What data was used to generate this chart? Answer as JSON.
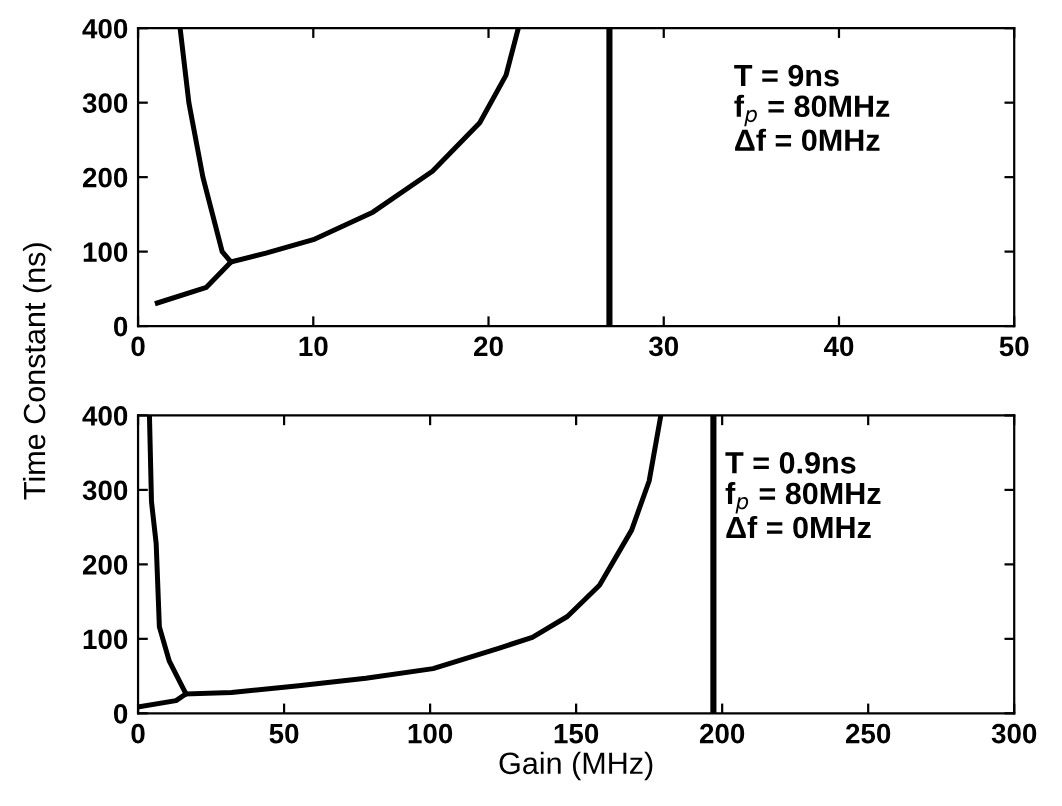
{
  "chart_data": [
    {
      "type": "line",
      "ylabel": "Time Constant (ns)",
      "xlim": [
        0,
        50
      ],
      "ylim": [
        0,
        400
      ],
      "xticks": [
        0,
        10,
        20,
        30,
        40,
        50
      ],
      "yticks": [
        0,
        100,
        200,
        300,
        400
      ],
      "grid": false,
      "series": [
        {
          "color": "#000000",
          "x": [
            2.4,
            2.9,
            3.7,
            4.8,
            5.3
          ],
          "values": [
            400,
            300,
            200,
            100,
            86
          ]
        },
        {
          "color": "#000000",
          "x": [
            1.1,
            3.9,
            5.3
          ],
          "values": [
            31,
            52,
            86
          ]
        },
        {
          "color": "#000000",
          "x": [
            5.3,
            7.3,
            10,
            13.4,
            16.8,
            19.5,
            21,
            21.7
          ],
          "values": [
            86,
            98,
            116,
            153,
            208,
            273,
            337,
            400
          ]
        }
      ],
      "ref_lines": [
        {
          "axis": "x",
          "value": 26.9,
          "color": "#000000"
        }
      ],
      "annotations": [
        "T = 9ns\nf$_{p}$ = 80MHz\nΔf = 0MHz"
      ]
    },
    {
      "type": "line",
      "xlabel": "Gain (MHz)",
      "xlim": [
        0,
        300
      ],
      "ylim": [
        0,
        400
      ],
      "xticks": [
        0,
        50,
        100,
        150,
        200,
        250,
        300
      ],
      "yticks": [
        0,
        100,
        200,
        300,
        400
      ],
      "grid": false,
      "series": [
        {
          "color": "#000000",
          "x": [
            3.9,
            4.6,
            6.2,
            7.3,
            10.7,
            16.4
          ],
          "values": [
            400,
            284,
            228,
            116,
            70,
            26
          ]
        },
        {
          "color": "#000000",
          "x": [
            0.5,
            13,
            16.4
          ],
          "values": [
            9,
            17,
            26
          ]
        },
        {
          "color": "#000000",
          "x": [
            16.4,
            32,
            55,
            78,
            101,
            124,
            135,
            147,
            158,
            169,
            175,
            179
          ],
          "values": [
            26,
            28,
            37,
            47,
            60,
            88,
            102,
            130,
            172,
            246,
            312,
            400
          ]
        }
      ],
      "ref_lines": [
        {
          "axis": "x",
          "value": 197,
          "color": "#000000"
        }
      ],
      "annotations": [
        "T = 0.9ns\nf$_{p}$ = 80MHz\nΔf = 0MHz"
      ]
    }
  ]
}
